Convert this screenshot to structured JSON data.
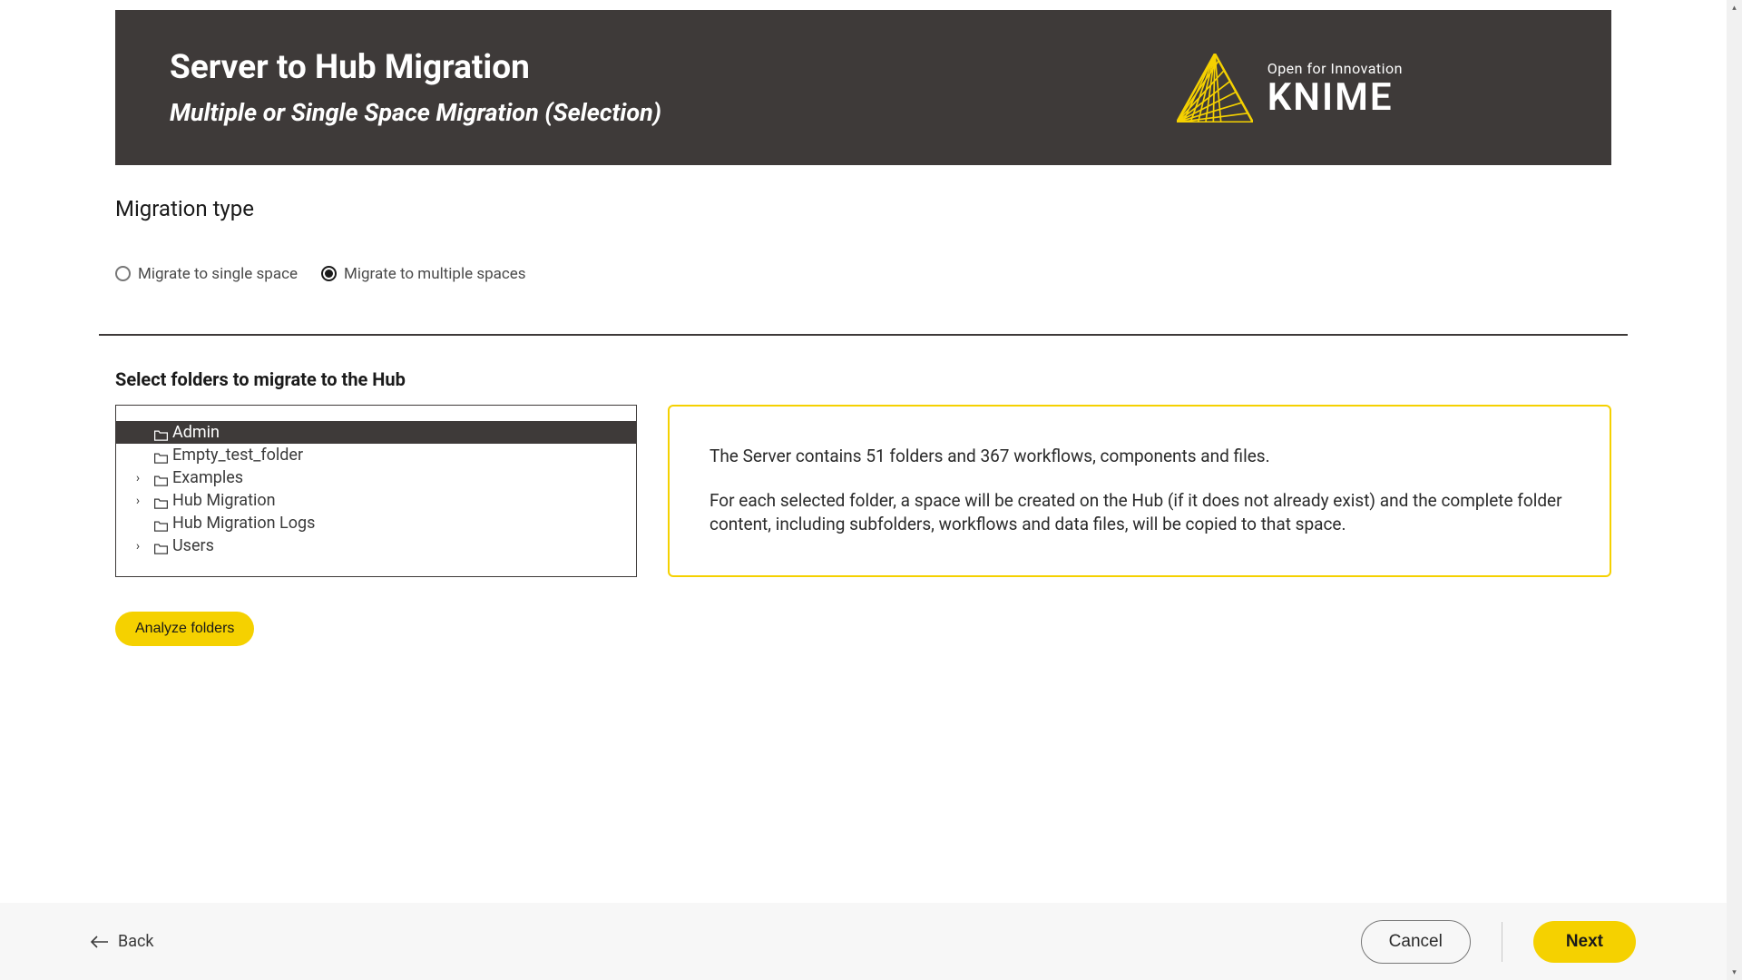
{
  "colors": {
    "header_bg": "#3e3a39",
    "accent_yellow": "#f5d100",
    "text_dark": "#1a1a1a",
    "footer_bg": "#f7f7f7",
    "border_gray": "#777777"
  },
  "header": {
    "title": "Server to Hub Migration",
    "subtitle": "Multiple or Single Space Migration (Selection)",
    "logo_tagline": "Open for Innovation",
    "logo_name": "KNIME"
  },
  "migration": {
    "section_title": "Migration type",
    "options": [
      {
        "label": "Migrate to single space",
        "selected": false
      },
      {
        "label": "Migrate to multiple spaces",
        "selected": true
      }
    ]
  },
  "folders": {
    "section_title": "Select folders to migrate to the Hub",
    "items": [
      {
        "label": "Admin",
        "expandable": false,
        "selected": true
      },
      {
        "label": "Empty_test_folder",
        "expandable": false,
        "selected": false
      },
      {
        "label": "Examples",
        "expandable": true,
        "selected": false
      },
      {
        "label": "Hub Migration",
        "expandable": true,
        "selected": false
      },
      {
        "label": "Hub Migration Logs",
        "expandable": false,
        "selected": false
      },
      {
        "label": "Users",
        "expandable": true,
        "selected": false
      }
    ],
    "analyze_label": "Analyze folders"
  },
  "info": {
    "paragraph1": "The Server contains 51 folders and 367 workflows, components and files.",
    "paragraph2": "For each selected folder, a space will be created on the Hub (if it does not already exist) and the complete folder content, including subfolders, workflows and data files, will be copied to that space."
  },
  "footer": {
    "back_label": "Back",
    "cancel_label": "Cancel",
    "next_label": "Next"
  }
}
